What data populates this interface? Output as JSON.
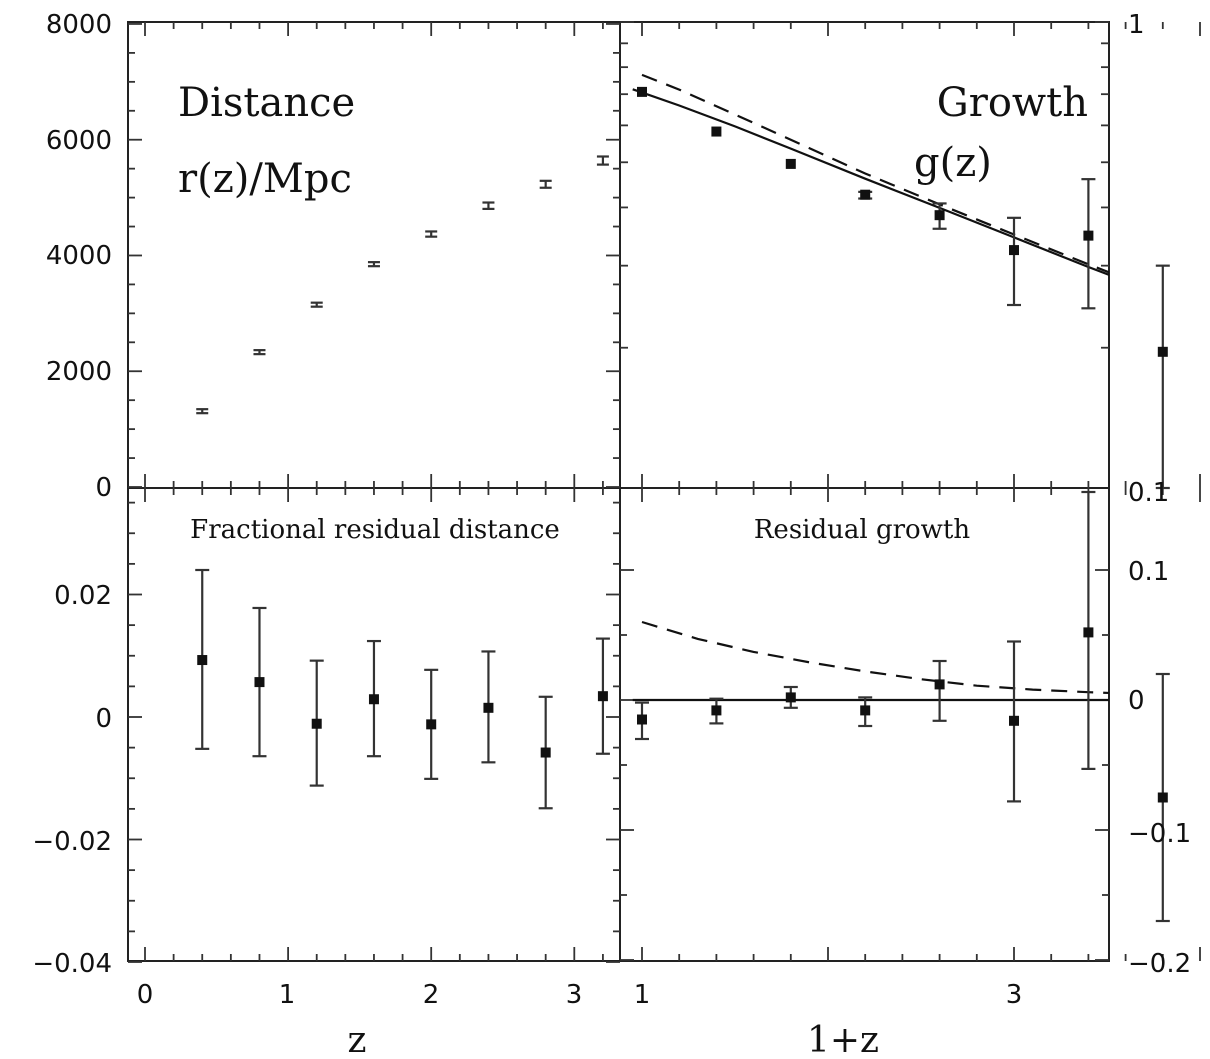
{
  "axis_labels": {
    "x_left": "z",
    "x_right": "1+z"
  },
  "panel_titles": {
    "distance": [
      "Distance",
      "r(z)/Mpc"
    ],
    "growth": [
      "Growth",
      "g(z)"
    ],
    "residual_distance": "Fractional residual distance",
    "residual_growth": "Residual growth"
  },
  "tick_labels": {
    "tl_y": [
      "0",
      "2000",
      "4000",
      "6000",
      "8000"
    ],
    "bl_y": [
      "0.02",
      "0",
      "−0.02",
      "−0.04"
    ],
    "tr_y": [
      "1"
    ],
    "br_y": [
      "0.1",
      "0.1",
      "0",
      "−0.1",
      "−0.2"
    ],
    "bl_x": [
      "0",
      "1",
      "2",
      "3"
    ],
    "br_x": [
      "1",
      "3"
    ]
  },
  "chart_data": [
    {
      "type": "scatter",
      "panel": "distance",
      "x": [
        0.4,
        0.8,
        1.2,
        1.6,
        2.0,
        2.4,
        2.8,
        3.2
      ],
      "y": [
        1310,
        2330,
        3150,
        3850,
        4370,
        4860,
        5230,
        5640
      ],
      "yerr": [
        8,
        15,
        25,
        35,
        45,
        55,
        60,
        70
      ],
      "xlim": [
        -0.12,
        3.27
      ],
      "ylim": [
        0,
        8000
      ]
    },
    {
      "type": "scatter",
      "panel": "growth",
      "scale": "log",
      "x": [
        1.0,
        1.4,
        1.8,
        2.2,
        2.6,
        3.0,
        3.4,
        3.8
      ],
      "y": [
        0.708,
        0.582,
        0.496,
        0.426,
        0.385,
        0.324,
        0.348,
        0.196
      ],
      "y_low": [
        0.708,
        0.582,
        0.496,
        0.418,
        0.36,
        0.247,
        0.243,
        0.1
      ],
      "y_high": [
        0.708,
        0.582,
        0.496,
        0.432,
        0.408,
        0.38,
        0.46,
        0.3
      ],
      "curves": [
        {
          "style": "solid",
          "x": [
            0.95,
            1.2,
            1.5,
            1.8,
            2.2,
            2.6,
            3.0,
            3.4,
            3.8,
            4.1
          ],
          "y": [
            0.717,
            0.662,
            0.597,
            0.535,
            0.461,
            0.399,
            0.345,
            0.298,
            0.259,
            0.235
          ]
        },
        {
          "style": "dashed",
          "x": [
            1.0,
            1.2,
            1.5,
            1.8,
            2.2,
            2.6,
            3.0,
            3.4,
            3.8,
            4.1
          ],
          "y": [
            0.77,
            0.716,
            0.633,
            0.559,
            0.473,
            0.406,
            0.35,
            0.302,
            0.262,
            0.238
          ]
        }
      ],
      "ylim": [
        0.1,
        1
      ]
    },
    {
      "type": "scatter",
      "panel": "residual_distance",
      "x": [
        0.4,
        0.8,
        1.2,
        1.6,
        2.0,
        2.4,
        2.8,
        3.2
      ],
      "y": [
        0.0093,
        0.0057,
        -0.0011,
        0.0029,
        -0.0012,
        0.0015,
        -0.0058,
        0.0034
      ],
      "y_low": [
        -0.0052,
        -0.0064,
        -0.0112,
        -0.0064,
        -0.0101,
        -0.0074,
        -0.0149,
        -0.006
      ],
      "y_high": [
        0.024,
        0.0178,
        0.0092,
        0.0124,
        0.0077,
        0.0107,
        0.0033,
        0.0128
      ],
      "xlim": [
        -0.12,
        3.27
      ],
      "ylim": [
        -0.04,
        0.035
      ]
    },
    {
      "type": "scatter",
      "panel": "residual_growth",
      "x": [
        1.0,
        1.4,
        1.8,
        2.2,
        2.6,
        3.0,
        3.4,
        3.8
      ],
      "y": [
        -0.015,
        -0.008,
        0.002,
        -0.008,
        0.012,
        -0.016,
        0.052,
        -0.075
      ],
      "y_low": [
        -0.03,
        -0.018,
        -0.006,
        -0.02,
        -0.016,
        -0.078,
        -0.053,
        -0.17
      ],
      "y_high": [
        -0.002,
        0.001,
        0.01,
        0.002,
        0.03,
        0.045,
        0.16,
        0.02
      ],
      "curves": [
        {
          "style": "solid",
          "x": [
            0.95,
            4.1
          ],
          "y": [
            0.0,
            0.0
          ]
        },
        {
          "style": "dashed",
          "x": [
            1.0,
            1.3,
            1.6,
            1.9,
            2.2,
            2.5,
            2.8,
            3.1,
            3.4,
            3.8,
            4.1
          ],
          "y": [
            0.06,
            0.047,
            0.037,
            0.029,
            0.022,
            0.016,
            0.011,
            0.008,
            0.006,
            0.004,
            0.003
          ]
        }
      ],
      "ylim": [
        -0.2,
        0.1
      ]
    }
  ]
}
